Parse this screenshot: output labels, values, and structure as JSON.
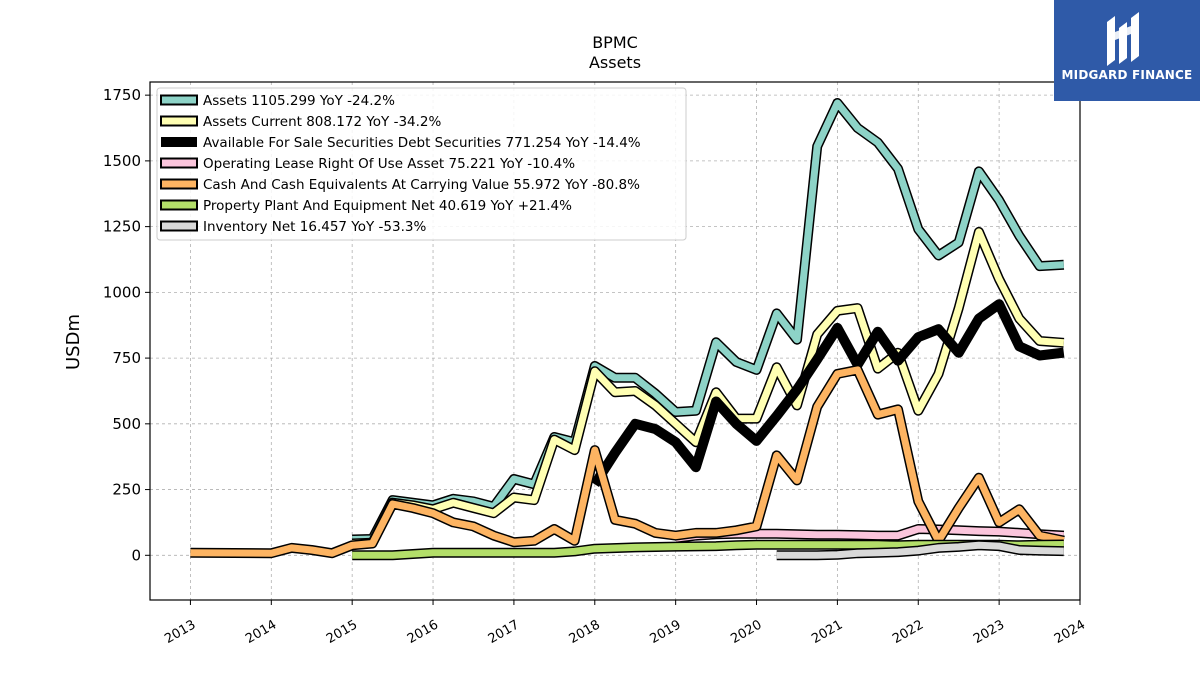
{
  "chart_data": {
    "type": "line",
    "title": "BPMC",
    "subtitle": "Assets",
    "ylabel": "USDm",
    "xlim": [
      2012.5,
      2024.0
    ],
    "ylim": [
      -170,
      1800
    ],
    "yticks": [
      0,
      250,
      500,
      750,
      1000,
      1250,
      1500,
      1750
    ],
    "xticks": [
      "2013",
      "2014",
      "2015",
      "2016",
      "2017",
      "2018",
      "2019",
      "2020",
      "2021",
      "2022",
      "2023",
      "2024"
    ],
    "grid": true,
    "legend_position": "top-left",
    "series": [
      {
        "name": "Assets  1105.299 YoY -24.2%",
        "color": "#8dd3c7",
        "width": 7,
        "points": [
          [
            2015.0,
            60
          ],
          [
            2015.25,
            62
          ],
          [
            2015.5,
            210
          ],
          [
            2015.75,
            200
          ],
          [
            2016.0,
            190
          ],
          [
            2016.25,
            215
          ],
          [
            2016.5,
            205
          ],
          [
            2016.75,
            185
          ],
          [
            2017.0,
            290
          ],
          [
            2017.25,
            270
          ],
          [
            2017.5,
            450
          ],
          [
            2017.75,
            430
          ],
          [
            2018.0,
            720
          ],
          [
            2018.25,
            675
          ],
          [
            2018.5,
            675
          ],
          [
            2018.75,
            615
          ],
          [
            2019.0,
            545
          ],
          [
            2019.25,
            550
          ],
          [
            2019.5,
            810
          ],
          [
            2019.75,
            735
          ],
          [
            2020.0,
            705
          ],
          [
            2020.25,
            920
          ],
          [
            2020.5,
            820
          ],
          [
            2020.75,
            1555
          ],
          [
            2021.0,
            1720
          ],
          [
            2021.25,
            1625
          ],
          [
            2021.5,
            1570
          ],
          [
            2021.75,
            1470
          ],
          [
            2022.0,
            1240
          ],
          [
            2022.25,
            1140
          ],
          [
            2022.5,
            1190
          ],
          [
            2022.75,
            1460
          ],
          [
            2023.0,
            1350
          ],
          [
            2023.25,
            1215
          ],
          [
            2023.5,
            1100
          ],
          [
            2023.8,
            1105
          ]
        ]
      },
      {
        "name": "Assets Current  808.172 YoY -34.2%",
        "color": "#ffffb3",
        "width": 7,
        "points": [
          [
            2015.0,
            45
          ],
          [
            2015.25,
            48
          ],
          [
            2015.5,
            200
          ],
          [
            2015.75,
            190
          ],
          [
            2016.0,
            175
          ],
          [
            2016.25,
            200
          ],
          [
            2016.5,
            180
          ],
          [
            2016.75,
            160
          ],
          [
            2017.0,
            220
          ],
          [
            2017.25,
            210
          ],
          [
            2017.5,
            440
          ],
          [
            2017.75,
            400
          ],
          [
            2018.0,
            700
          ],
          [
            2018.25,
            620
          ],
          [
            2018.5,
            625
          ],
          [
            2018.75,
            570
          ],
          [
            2019.0,
            500
          ],
          [
            2019.25,
            430
          ],
          [
            2019.5,
            620
          ],
          [
            2019.75,
            520
          ],
          [
            2020.0,
            520
          ],
          [
            2020.25,
            715
          ],
          [
            2020.5,
            570
          ],
          [
            2020.75,
            840
          ],
          [
            2021.0,
            930
          ],
          [
            2021.25,
            940
          ],
          [
            2021.5,
            710
          ],
          [
            2021.75,
            770
          ],
          [
            2022.0,
            550
          ],
          [
            2022.25,
            690
          ],
          [
            2022.5,
            940
          ],
          [
            2022.75,
            1230
          ],
          [
            2023.0,
            1050
          ],
          [
            2023.25,
            900
          ],
          [
            2023.5,
            815
          ],
          [
            2023.8,
            808
          ]
        ]
      },
      {
        "name": "Available For Sale Securities Debt Securities  771.254 YoY -14.4%",
        "color": "#000000",
        "width": 10,
        "points": [
          [
            2018.0,
            270
          ],
          [
            2018.25,
            390
          ],
          [
            2018.5,
            500
          ],
          [
            2018.75,
            480
          ],
          [
            2019.0,
            430
          ],
          [
            2019.25,
            335
          ],
          [
            2019.5,
            585
          ],
          [
            2019.75,
            500
          ],
          [
            2020.0,
            435
          ],
          [
            2020.25,
            530
          ],
          [
            2020.5,
            630
          ],
          [
            2020.75,
            745
          ],
          [
            2021.0,
            865
          ],
          [
            2021.25,
            725
          ],
          [
            2021.5,
            850
          ],
          [
            2021.75,
            740
          ],
          [
            2022.0,
            830
          ],
          [
            2022.25,
            860
          ],
          [
            2022.5,
            770
          ],
          [
            2022.75,
            900
          ],
          [
            2023.0,
            955
          ],
          [
            2023.25,
            795
          ],
          [
            2023.5,
            760
          ],
          [
            2023.8,
            771
          ]
        ]
      },
      {
        "name": "Operating Lease Right Of Use Asset  75.221 YoY -10.4%",
        "color": "#fbc5dc",
        "width": 7,
        "points": [
          [
            2019.0,
            65
          ],
          [
            2019.25,
            75
          ],
          [
            2019.5,
            80
          ],
          [
            2019.75,
            82
          ],
          [
            2020.0,
            82
          ],
          [
            2020.25,
            82
          ],
          [
            2020.5,
            80
          ],
          [
            2020.75,
            78
          ],
          [
            2021.0,
            78
          ],
          [
            2021.25,
            77
          ],
          [
            2021.5,
            75
          ],
          [
            2021.75,
            75
          ],
          [
            2022.0,
            100
          ],
          [
            2022.25,
            98
          ],
          [
            2022.5,
            95
          ],
          [
            2022.75,
            92
          ],
          [
            2023.0,
            90
          ],
          [
            2023.25,
            85
          ],
          [
            2023.5,
            80
          ],
          [
            2023.8,
            75
          ]
        ]
      },
      {
        "name": "Cash And Cash Equivalents At Carrying Value  55.972 YoY -80.8%",
        "color": "#fdb462",
        "width": 7,
        "points": [
          [
            2013.0,
            10
          ],
          [
            2014.0,
            8
          ],
          [
            2014.25,
            28
          ],
          [
            2014.5,
            20
          ],
          [
            2014.75,
            8
          ],
          [
            2015.0,
            38
          ],
          [
            2015.25,
            45
          ],
          [
            2015.5,
            195
          ],
          [
            2015.75,
            180
          ],
          [
            2016.0,
            160
          ],
          [
            2016.25,
            125
          ],
          [
            2016.5,
            110
          ],
          [
            2016.75,
            75
          ],
          [
            2017.0,
            50
          ],
          [
            2017.25,
            55
          ],
          [
            2017.5,
            100
          ],
          [
            2017.75,
            55
          ],
          [
            2018.0,
            400
          ],
          [
            2018.25,
            135
          ],
          [
            2018.5,
            120
          ],
          [
            2018.75,
            85
          ],
          [
            2019.0,
            75
          ],
          [
            2019.25,
            85
          ],
          [
            2019.5,
            85
          ],
          [
            2019.75,
            95
          ],
          [
            2020.0,
            110
          ],
          [
            2020.25,
            380
          ],
          [
            2020.5,
            285
          ],
          [
            2020.75,
            565
          ],
          [
            2021.0,
            690
          ],
          [
            2021.25,
            705
          ],
          [
            2021.5,
            535
          ],
          [
            2021.75,
            555
          ],
          [
            2022.0,
            205
          ],
          [
            2022.25,
            55
          ],
          [
            2022.5,
            180
          ],
          [
            2022.75,
            295
          ],
          [
            2023.0,
            125
          ],
          [
            2023.25,
            175
          ],
          [
            2023.5,
            75
          ],
          [
            2023.8,
            56
          ]
        ]
      },
      {
        "name": "Property Plant And Equipment Net  40.619 YoY +21.4%",
        "color": "#b3de69",
        "width": 7,
        "points": [
          [
            2015.0,
            0
          ],
          [
            2015.5,
            0
          ],
          [
            2015.75,
            5
          ],
          [
            2016.0,
            10
          ],
          [
            2016.5,
            10
          ],
          [
            2017.0,
            10
          ],
          [
            2017.5,
            10
          ],
          [
            2017.75,
            15
          ],
          [
            2018.0,
            25
          ],
          [
            2018.5,
            30
          ],
          [
            2019.0,
            33
          ],
          [
            2019.5,
            35
          ],
          [
            2019.75,
            38
          ],
          [
            2020.0,
            40
          ],
          [
            2020.5,
            40
          ],
          [
            2021.0,
            40
          ],
          [
            2021.5,
            40
          ],
          [
            2021.75,
            38
          ],
          [
            2022.0,
            40
          ],
          [
            2022.5,
            40
          ],
          [
            2023.0,
            40
          ],
          [
            2023.25,
            38
          ],
          [
            2023.5,
            40
          ],
          [
            2023.8,
            41
          ]
        ]
      },
      {
        "name": "Inventory Net  16.457 YoY -53.3%",
        "color": "#d9d9d9",
        "width": 7,
        "points": [
          [
            2020.25,
            0
          ],
          [
            2020.75,
            0
          ],
          [
            2021.0,
            2
          ],
          [
            2021.25,
            8
          ],
          [
            2021.5,
            10
          ],
          [
            2021.75,
            12
          ],
          [
            2022.0,
            18
          ],
          [
            2022.25,
            28
          ],
          [
            2022.5,
            32
          ],
          [
            2022.75,
            38
          ],
          [
            2023.0,
            35
          ],
          [
            2023.25,
            20
          ],
          [
            2023.5,
            18
          ],
          [
            2023.8,
            16
          ]
        ]
      }
    ]
  },
  "logo": {
    "text": "MIDGARD FINANCE"
  }
}
